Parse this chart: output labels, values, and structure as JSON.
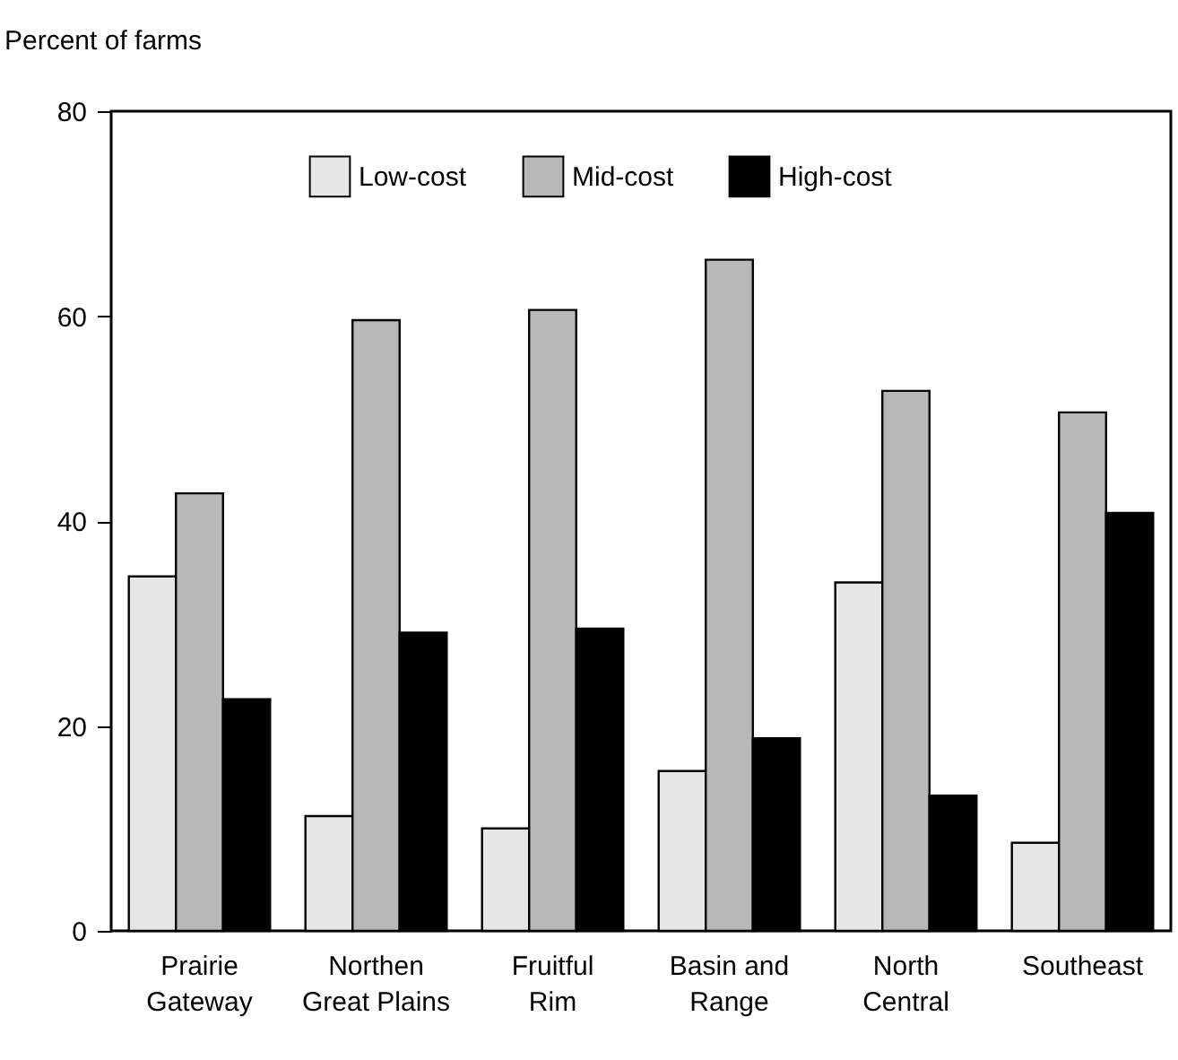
{
  "chart_data": {
    "type": "bar",
    "ylabel": "Percent of farms",
    "categories": [
      "Prairie Gateway",
      "Northen Great Plains",
      "Fruitful Rim",
      "Basin and Range",
      "North Central",
      "Southeast"
    ],
    "series": [
      {
        "name": "Low-cost",
        "color": "#e6e6e6",
        "values": [
          34.6,
          11.2,
          10.0,
          15.6,
          34.0,
          8.6
        ]
      },
      {
        "name": "Mid-cost",
        "color": "#b8b8b8",
        "values": [
          42.7,
          59.6,
          60.6,
          65.5,
          52.7,
          50.6
        ]
      },
      {
        "name": "High-cost",
        "color": "#000000",
        "values": [
          22.6,
          29.1,
          29.5,
          18.8,
          13.2,
          40.8
        ]
      }
    ],
    "ylim": [
      0,
      80
    ],
    "yticks": [
      0,
      20,
      40,
      60,
      80
    ],
    "grid": false,
    "legend": "top"
  }
}
